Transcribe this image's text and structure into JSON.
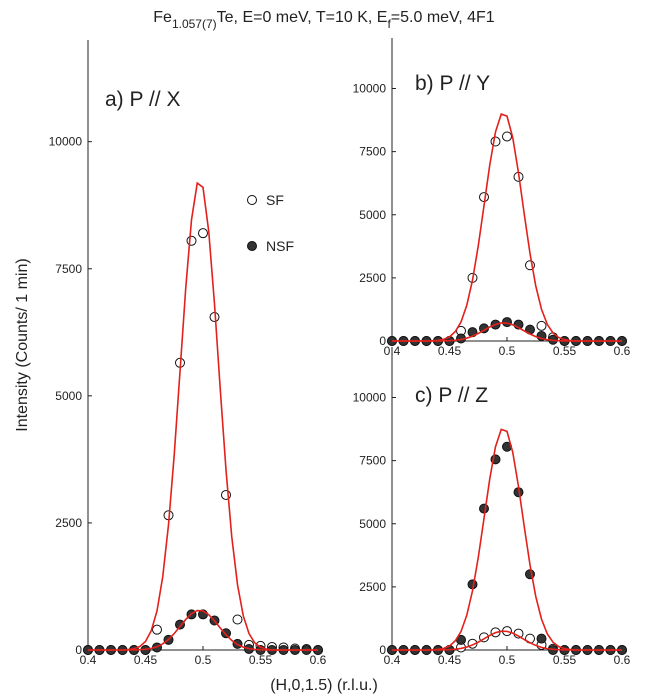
{
  "figure": {
    "title": [
      "Fe",
      "1.057(7)",
      "Te, E=0 meV, T=10 K, E",
      "f",
      "=5.0 meV, 4F1"
    ],
    "xlabel": "(H,0,1.5) (r.l.u.)",
    "ylabel": "Intensity (Counts/ 1 min)"
  },
  "chart_data": [
    {
      "type": "scatter",
      "title": "a) P // X",
      "legend": "upper right",
      "xlim": [
        0.4,
        0.6
      ],
      "xticks": [
        0.4,
        0.45,
        0.5,
        0.55,
        0.6
      ],
      "ylim": [
        0,
        12000
      ],
      "yticks": [
        0,
        2500,
        5000,
        7500,
        10000
      ],
      "series": [
        {
          "name": "SF",
          "marker": "open",
          "color": "#222222",
          "x": [
            0.4,
            0.41,
            0.42,
            0.43,
            0.44,
            0.45,
            0.46,
            0.47,
            0.48,
            0.49,
            0.5,
            0.51,
            0.52,
            0.53,
            0.54,
            0.55,
            0.56,
            0.57,
            0.58,
            0.59,
            0.6
          ],
          "values": [
            0,
            0,
            0,
            0,
            0,
            0,
            400,
            2650,
            5650,
            8050,
            8200,
            6550,
            3050,
            600,
            100,
            80,
            60,
            50,
            30,
            20,
            0
          ]
        },
        {
          "name": "NSF",
          "marker": "filled",
          "color": "#333333",
          "x": [
            0.4,
            0.41,
            0.42,
            0.43,
            0.44,
            0.45,
            0.46,
            0.47,
            0.48,
            0.49,
            0.5,
            0.51,
            0.52,
            0.53,
            0.54,
            0.55,
            0.56,
            0.57,
            0.58,
            0.59,
            0.6
          ],
          "values": [
            0,
            0,
            0,
            0,
            0,
            0,
            50,
            200,
            500,
            700,
            700,
            580,
            330,
            120,
            20,
            0,
            0,
            0,
            0,
            0,
            0
          ]
        },
        {
          "type": "line",
          "color": "#e3201b",
          "x": [
            0.4,
            0.43,
            0.435,
            0.44,
            0.445,
            0.45,
            0.455,
            0.46,
            0.465,
            0.47,
            0.475,
            0.48,
            0.485,
            0.49,
            0.495,
            0.5,
            0.505,
            0.51,
            0.515,
            0.52,
            0.525,
            0.53,
            0.535,
            0.54,
            0.545,
            0.55,
            0.555,
            0.56,
            0.6
          ],
          "values": [
            0,
            0,
            9,
            25,
            68,
            167,
            379,
            768,
            1443,
            2461,
            3848,
            5476,
            7123,
            8464,
            9185,
            9102,
            8233,
            6808,
            5134,
            3543,
            2229,
            1286,
            675,
            324,
            139,
            56,
            19,
            0,
            0
          ]
        },
        {
          "type": "line",
          "color": "#e3201b",
          "x": [
            0.4,
            0.43,
            0.435,
            0.44,
            0.445,
            0.45,
            0.455,
            0.46,
            0.465,
            0.47,
            0.475,
            0.48,
            0.485,
            0.49,
            0.495,
            0.5,
            0.505,
            0.51,
            0.515,
            0.52,
            0.525,
            0.53,
            0.535,
            0.54,
            0.545,
            0.55,
            0.555,
            0.56,
            0.6
          ],
          "values": [
            0,
            0,
            1,
            2,
            6,
            14,
            32,
            65,
            122,
            207,
            324,
            462,
            601,
            714,
            775,
            768,
            694,
            574,
            433,
            299,
            188,
            108,
            57,
            27,
            12,
            5,
            2,
            0,
            0
          ]
        }
      ]
    },
    {
      "type": "scatter",
      "title": "b) P // Y",
      "xlim": [
        0.4,
        0.6
      ],
      "xticks": [
        0.4,
        0.45,
        0.5,
        0.55,
        0.6
      ],
      "ylim": [
        0,
        12000
      ],
      "yticks": [
        0,
        2500,
        5000,
        7500,
        10000
      ],
      "series": [
        {
          "name": "SF",
          "marker": "open",
          "color": "#222222",
          "x": [
            0.4,
            0.41,
            0.42,
            0.43,
            0.44,
            0.45,
            0.46,
            0.47,
            0.48,
            0.49,
            0.5,
            0.51,
            0.52,
            0.53,
            0.54,
            0.55,
            0.56,
            0.57,
            0.58,
            0.59,
            0.6
          ],
          "values": [
            0,
            0,
            0,
            0,
            0,
            0,
            400,
            2500,
            5700,
            7900,
            8100,
            6500,
            3000,
            600,
            150,
            0,
            0,
            0,
            0,
            0,
            0
          ]
        },
        {
          "name": "NSF",
          "marker": "filled",
          "color": "#333333",
          "x": [
            0.4,
            0.41,
            0.42,
            0.43,
            0.44,
            0.45,
            0.46,
            0.47,
            0.48,
            0.49,
            0.5,
            0.51,
            0.52,
            0.53,
            0.54,
            0.55,
            0.56,
            0.57,
            0.58,
            0.59,
            0.6
          ],
          "values": [
            0,
            0,
            0,
            0,
            0,
            0,
            100,
            350,
            500,
            650,
            750,
            650,
            450,
            200,
            50,
            0,
            0,
            0,
            0,
            0,
            0
          ]
        },
        {
          "type": "line",
          "color": "#e3201b",
          "x": [
            0.4,
            0.43,
            0.435,
            0.44,
            0.445,
            0.45,
            0.455,
            0.46,
            0.465,
            0.47,
            0.475,
            0.48,
            0.485,
            0.49,
            0.495,
            0.5,
            0.505,
            0.51,
            0.515,
            0.52,
            0.525,
            0.53,
            0.535,
            0.54,
            0.545,
            0.55,
            0.555,
            0.56,
            0.6
          ],
          "values": [
            0,
            0,
            9,
            24,
            67,
            163,
            371,
            751,
            1412,
            2407,
            3765,
            5358,
            6969,
            8281,
            8987,
            8905,
            8055,
            6661,
            5023,
            3466,
            2181,
            1258,
            661,
            317,
            136,
            54,
            18,
            0,
            0
          ]
        },
        {
          "type": "line",
          "color": "#e3201b",
          "x": [
            0.4,
            0.43,
            0.435,
            0.44,
            0.445,
            0.45,
            0.455,
            0.46,
            0.465,
            0.47,
            0.475,
            0.48,
            0.485,
            0.49,
            0.495,
            0.5,
            0.505,
            0.51,
            0.515,
            0.52,
            0.525,
            0.53,
            0.535,
            0.54,
            0.545,
            0.55,
            0.555,
            0.56,
            0.6
          ],
          "values": [
            0,
            0,
            1,
            2,
            5,
            13,
            30,
            60,
            112,
            192,
            300,
            426,
            554,
            659,
            715,
            708,
            641,
            530,
            400,
            276,
            174,
            100,
            53,
            25,
            11,
            4,
            1,
            0,
            0
          ]
        }
      ]
    },
    {
      "type": "scatter",
      "title": "c) P // Z",
      "xlim": [
        0.4,
        0.6
      ],
      "xticks": [
        0.4,
        0.45,
        0.5,
        0.55,
        0.6
      ],
      "ylim": [
        0,
        12000
      ],
      "yticks": [
        0,
        2500,
        5000,
        7500,
        10000
      ],
      "series": [
        {
          "name": "SF",
          "marker": "open",
          "color": "#222222",
          "x": [
            0.4,
            0.41,
            0.42,
            0.43,
            0.44,
            0.45,
            0.46,
            0.47,
            0.48,
            0.49,
            0.5,
            0.51,
            0.52,
            0.53,
            0.54,
            0.55,
            0.56,
            0.57,
            0.58,
            0.59,
            0.6
          ],
          "values": [
            0,
            0,
            0,
            0,
            0,
            0,
            100,
            250,
            500,
            700,
            750,
            650,
            450,
            200,
            50,
            0,
            0,
            0,
            0,
            0,
            0
          ]
        },
        {
          "name": "NSF",
          "marker": "filled",
          "color": "#333333",
          "x": [
            0.4,
            0.41,
            0.42,
            0.43,
            0.44,
            0.45,
            0.46,
            0.47,
            0.48,
            0.49,
            0.5,
            0.51,
            0.52,
            0.53,
            0.54,
            0.55,
            0.56,
            0.57,
            0.58,
            0.59,
            0.6
          ],
          "values": [
            0,
            0,
            0,
            0,
            0,
            0,
            400,
            2600,
            5600,
            7550,
            8050,
            6250,
            3000,
            450,
            0,
            0,
            0,
            0,
            0,
            0,
            0
          ]
        },
        {
          "type": "line",
          "color": "#e3201b",
          "x": [
            0.4,
            0.43,
            0.435,
            0.44,
            0.445,
            0.45,
            0.455,
            0.46,
            0.465,
            0.47,
            0.475,
            0.48,
            0.485,
            0.49,
            0.495,
            0.5,
            0.505,
            0.51,
            0.515,
            0.52,
            0.525,
            0.53,
            0.535,
            0.54,
            0.545,
            0.55,
            0.555,
            0.56,
            0.6
          ],
          "values": [
            0,
            0,
            9,
            24,
            65,
            158,
            361,
            730,
            1373,
            2341,
            3661,
            5210,
            6776,
            8052,
            8738,
            8659,
            7832,
            6477,
            4884,
            3370,
            2121,
            1223,
            642,
            308,
            132,
            53,
            18,
            0,
            0
          ]
        },
        {
          "type": "line",
          "color": "#e3201b",
          "x": [
            0.4,
            0.43,
            0.435,
            0.44,
            0.445,
            0.45,
            0.455,
            0.46,
            0.465,
            0.47,
            0.475,
            0.48,
            0.485,
            0.49,
            0.495,
            0.5,
            0.505,
            0.51,
            0.515,
            0.52,
            0.525,
            0.53,
            0.535,
            0.54,
            0.545,
            0.55,
            0.555,
            0.56,
            0.6
          ],
          "values": [
            0,
            0,
            1,
            2,
            6,
            14,
            31,
            62,
            117,
            200,
            312,
            444,
            578,
            686,
            745,
            738,
            668,
            552,
            416,
            287,
            181,
            104,
            55,
            26,
            11,
            5,
            2,
            0,
            0
          ]
        }
      ]
    }
  ]
}
